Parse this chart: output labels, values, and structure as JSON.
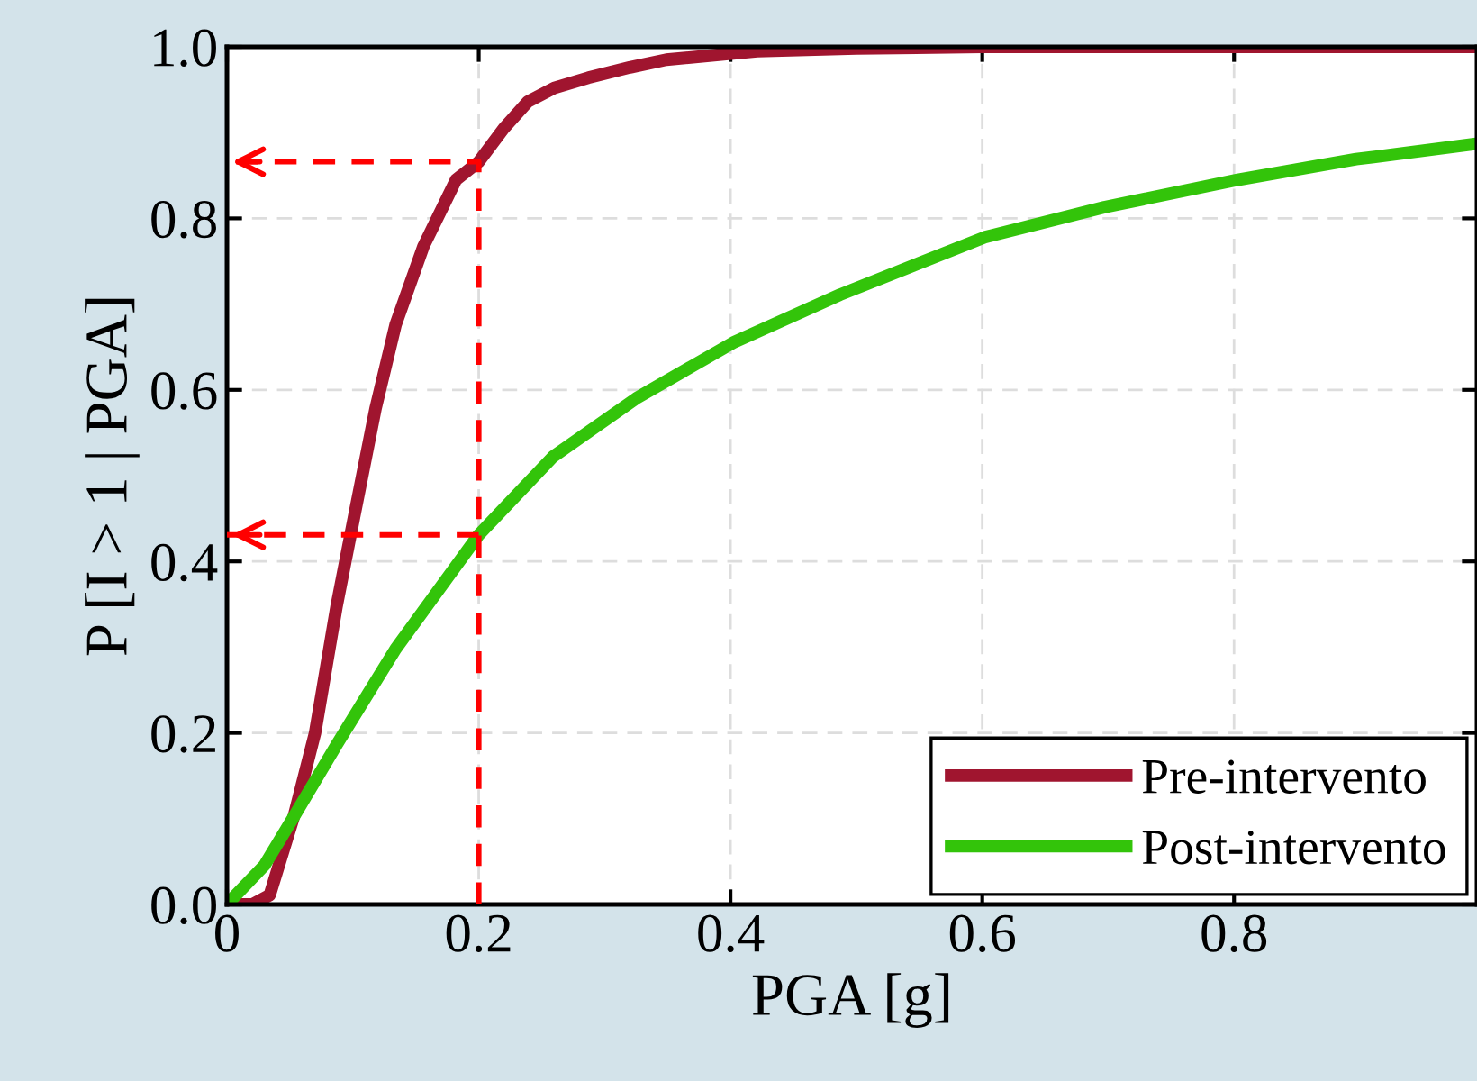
{
  "chart_data": {
    "type": "line",
    "xlabel": "PGA [g]",
    "ylabel": "P [I > 1 | PGA]",
    "xlim": [
      0,
      0.993
    ],
    "ylim": [
      0,
      1
    ],
    "xticks": [
      {
        "value": 0,
        "label": "0"
      },
      0.2,
      0.4,
      0.6,
      0.8
    ],
    "yticks": [
      {
        "value": 0,
        "label": "0.0"
      },
      0.2,
      0.4,
      0.6,
      0.8,
      {
        "value": 1,
        "label": "1.0"
      }
    ],
    "grid": true,
    "legend": "bottom right",
    "line_style": "solid",
    "marker": "none",
    "series": [
      {
        "name": "Pre-intervento",
        "color": "#a0152f",
        "x": [
          0,
          0.02,
          0.034,
          0.053,
          0.07,
          0.087,
          0.101,
          0.118,
          0.134,
          0.156,
          0.182,
          0.2,
          0.22,
          0.239,
          0.26,
          0.287,
          0.32,
          0.349,
          0.421,
          0.5,
          0.6,
          0.993
        ],
        "values": [
          0,
          0,
          0.011,
          0.102,
          0.2,
          0.347,
          0.452,
          0.578,
          0.676,
          0.767,
          0.845,
          0.866,
          0.905,
          0.936,
          0.952,
          0.964,
          0.976,
          0.985,
          0.995,
          0.998,
          1.0,
          1.0
        ]
      },
      {
        "name": "Post-intervento",
        "color": "#33c40a",
        "x": [
          0,
          0.03,
          0.053,
          0.087,
          0.134,
          0.2,
          0.259,
          0.325,
          0.402,
          0.487,
          0.602,
          0.697,
          0.803,
          0.897,
          0.993
        ],
        "values": [
          0,
          0.046,
          0.102,
          0.186,
          0.298,
          0.431,
          0.522,
          0.59,
          0.655,
          0.711,
          0.778,
          0.813,
          0.845,
          0.869,
          0.887
        ]
      },
      {
        "color": "#ff0000",
        "line_style": "dashed",
        "x": [
          0.2,
          0.2,
          0
        ],
        "values": [
          0,
          0.866,
          0.866
        ]
      },
      {
        "color": "#ff0000",
        "line_style": "dashed",
        "x": [
          0.2,
          0
        ],
        "values": [
          0.431,
          0.431
        ]
      }
    ]
  }
}
